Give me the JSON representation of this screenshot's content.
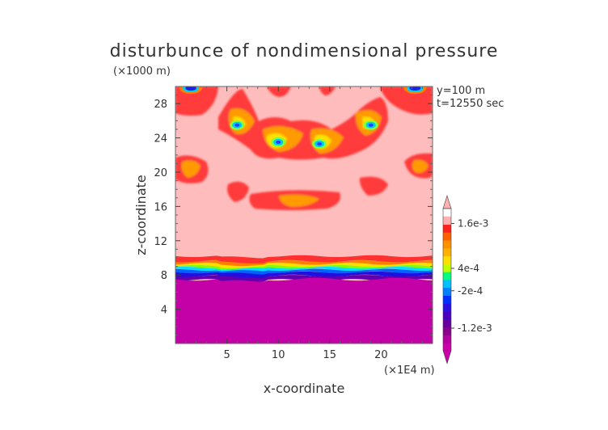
{
  "chart_data": {
    "type": "heatmap",
    "title": "disturbunce of nondimensional pressure",
    "xlabel": "x-coordinate",
    "ylabel": "z-coordinate",
    "x_unit": "(×1E4 m)",
    "y_unit": "(×1000 m)",
    "annotations": [
      "y=100 m",
      "t=12550 sec"
    ],
    "xlim": [
      0,
      25
    ],
    "ylim": [
      0,
      30
    ],
    "x_ticks": [
      5,
      10,
      15,
      20
    ],
    "y_ticks": [
      4,
      8,
      12,
      16,
      20,
      24,
      28
    ],
    "x_tick_labels": [
      "5",
      "10",
      "15",
      "20"
    ],
    "y_tick_labels": [
      "4",
      "8",
      "12",
      "16",
      "20",
      "24",
      "28"
    ],
    "colorbar": {
      "labels": [
        "1.6e-3",
        "4e-4",
        "-2e-4",
        "-1.2e-3"
      ],
      "label_values": [
        0.0016,
        0.0004,
        -0.0002,
        -0.0012
      ],
      "colors": [
        "#cc00aa",
        "#b0009e",
        "#8a008c",
        "#66009e",
        "#4a00c0",
        "#2a10e0",
        "#0030ff",
        "#0080ff",
        "#00c0ff",
        "#00ff80",
        "#c0ff00",
        "#ffe000",
        "#ffb000",
        "#ff9000",
        "#ff6000",
        "#ff2020",
        "#ffb0b0"
      ]
    },
    "bands": [
      {
        "level": "base",
        "z_range": [
          0,
          7.8
        ],
        "value": -0.0014
      },
      {
        "level": "transition",
        "z_range": [
          7.8,
          10
        ],
        "value_range": [
          -0.0012,
          0.0016
        ]
      },
      {
        "level": "upper",
        "z_range": [
          10,
          30
        ],
        "value": 0.0018
      }
    ],
    "blobs": [
      {
        "x": 10,
        "z": 23.5,
        "value": 0
      },
      {
        "x": 14,
        "z": 23.3,
        "value": 0
      },
      {
        "x": 6,
        "z": 25.5,
        "value": 0
      },
      {
        "x": 19,
        "z": 25.5,
        "value": 0
      },
      {
        "x": 1.5,
        "z": 29.8,
        "value": -0.001
      },
      {
        "x": 23.3,
        "z": 29.8,
        "value": -0.001
      }
    ]
  }
}
